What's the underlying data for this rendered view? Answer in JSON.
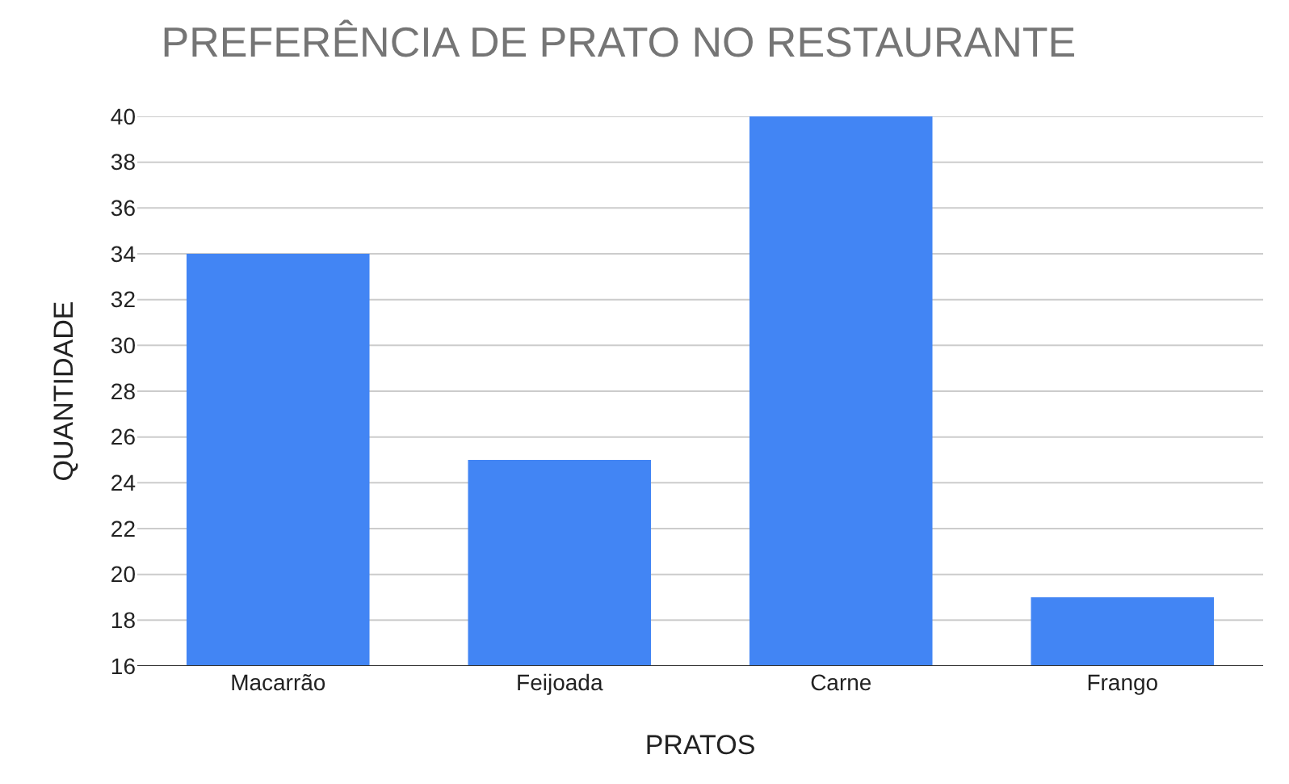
{
  "chart_data": {
    "type": "bar",
    "title": "PREFERÊNCIA DE PRATO NO RESTAURANTE",
    "xlabel": "PRATOS",
    "ylabel": "QUANTIDADE",
    "categories": [
      "Macarrão",
      "Feijoada",
      "Carne",
      "Frango"
    ],
    "values": [
      34,
      25,
      40,
      19
    ],
    "color": "#4285f4",
    "ylim": [
      16,
      40
    ],
    "yticks": [
      16,
      18,
      20,
      22,
      24,
      26,
      28,
      30,
      32,
      34,
      36,
      38,
      40
    ],
    "grid": "y"
  }
}
